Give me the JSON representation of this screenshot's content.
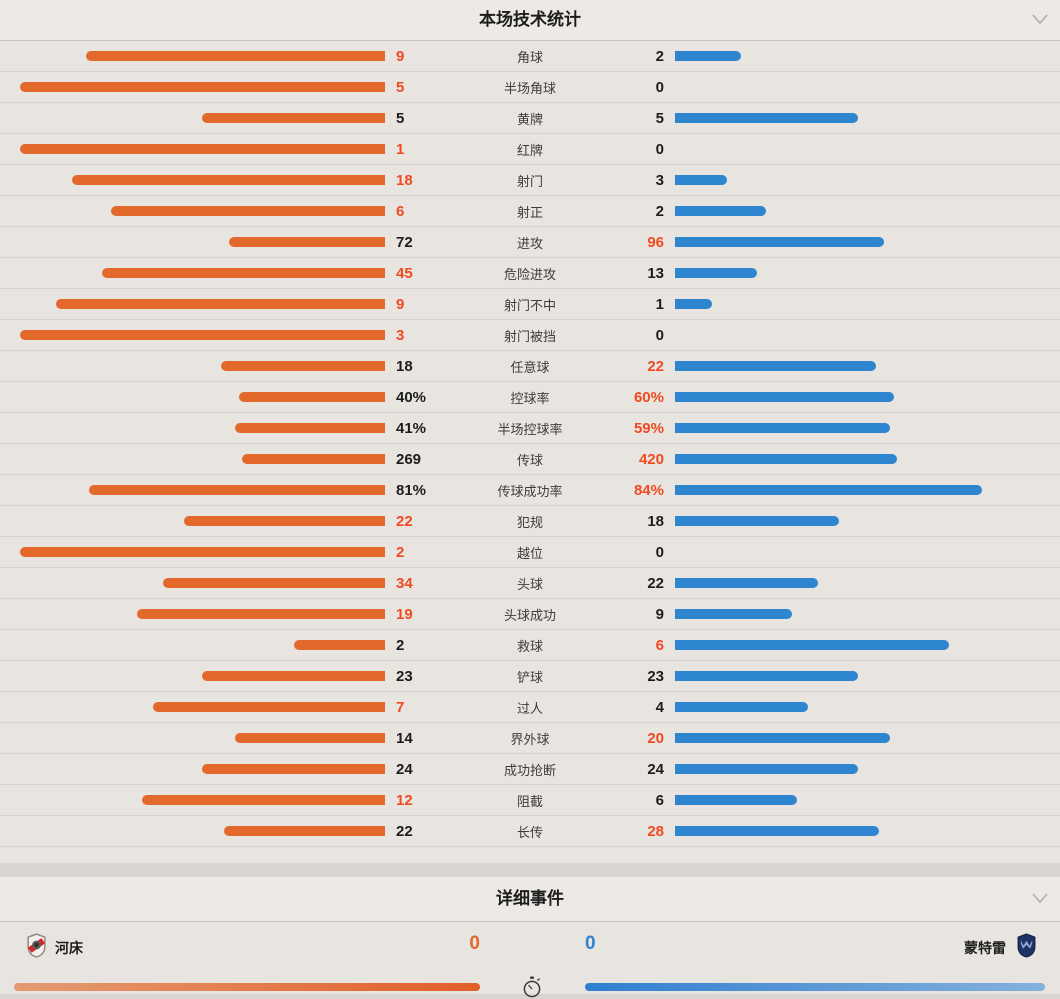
{
  "colors": {
    "home_bar": "#e2682b",
    "away_bar": "#2e85d0",
    "highlight_value": "#f04a21",
    "normal_value": "#1d1d1d"
  },
  "icons": {
    "collapse": "chevron-down",
    "timer": "stopwatch",
    "home_crest": "river-plate-shield",
    "away_crest": "monterrey-shield"
  },
  "stats_panel": {
    "title": "本场技术统计",
    "rows": [
      {
        "label": "角球",
        "home": "9",
        "away": "2"
      },
      {
        "label": "半场角球",
        "home": "5",
        "away": "0"
      },
      {
        "label": "黄牌",
        "home": "5",
        "away": "5"
      },
      {
        "label": "红牌",
        "home": "1",
        "away": "0"
      },
      {
        "label": "射门",
        "home": "18",
        "away": "3"
      },
      {
        "label": "射正",
        "home": "6",
        "away": "2"
      },
      {
        "label": "进攻",
        "home": "72",
        "away": "96"
      },
      {
        "label": "危险进攻",
        "home": "45",
        "away": "13"
      },
      {
        "label": "射门不中",
        "home": "9",
        "away": "1"
      },
      {
        "label": "射门被挡",
        "home": "3",
        "away": "0"
      },
      {
        "label": "任意球",
        "home": "18",
        "away": "22"
      },
      {
        "label": "控球率",
        "home": "40%",
        "away": "60%"
      },
      {
        "label": "半场控球率",
        "home": "41%",
        "away": "59%"
      },
      {
        "label": "传球",
        "home": "269",
        "away": "420"
      },
      {
        "label": "传球成功率",
        "home": "81%",
        "away": "84%"
      },
      {
        "label": "犯规",
        "home": "22",
        "away": "18"
      },
      {
        "label": "越位",
        "home": "2",
        "away": "0"
      },
      {
        "label": "头球",
        "home": "34",
        "away": "22"
      },
      {
        "label": "头球成功",
        "home": "19",
        "away": "9"
      },
      {
        "label": "救球",
        "home": "2",
        "away": "6"
      },
      {
        "label": "铲球",
        "home": "23",
        "away": "23"
      },
      {
        "label": "过人",
        "home": "7",
        "away": "4"
      },
      {
        "label": "界外球",
        "home": "14",
        "away": "20"
      },
      {
        "label": "成功抢断",
        "home": "24",
        "away": "24"
      },
      {
        "label": "阻截",
        "home": "12",
        "away": "6"
      },
      {
        "label": "长传",
        "home": "22",
        "away": "28"
      }
    ]
  },
  "events_panel": {
    "title": "详细事件",
    "home_team": {
      "name": "河床",
      "score": "0"
    },
    "away_team": {
      "name": "蒙特雷",
      "score": "0"
    }
  }
}
